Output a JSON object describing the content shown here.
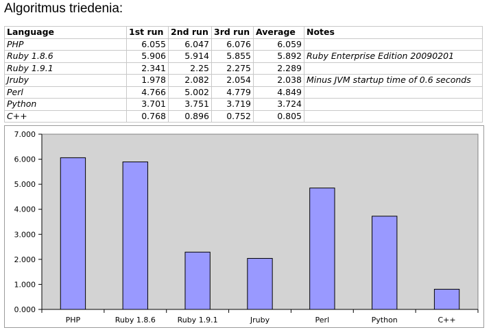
{
  "title": "Algoritmus triedenia:",
  "table": {
    "headers": [
      "Language",
      "1st run",
      "2nd run",
      "3rd run",
      "Average",
      "Notes"
    ],
    "rows": [
      [
        "PHP",
        "6.055",
        "6.047",
        "6.076",
        "6.059",
        ""
      ],
      [
        "Ruby 1.8.6",
        "5.906",
        "5.914",
        "5.855",
        "5.892",
        "Ruby Enterprise Edition 20090201"
      ],
      [
        "Ruby 1.9.1",
        "2.341",
        "2.25",
        "2.275",
        "2.289",
        ""
      ],
      [
        "Jruby",
        "1.978",
        "2.082",
        "2.054",
        "2.038",
        "Minus JVM startup time of 0.6 seconds"
      ],
      [
        "Perl",
        "4.766",
        "5.002",
        "4.779",
        "4.849",
        ""
      ],
      [
        "Python",
        "3.701",
        "3.751",
        "3.719",
        "3.724",
        ""
      ],
      [
        "C++",
        "0.768",
        "0.896",
        "0.752",
        "0.805",
        ""
      ]
    ]
  },
  "chart_data": {
    "type": "bar",
    "categories": [
      "PHP",
      "Ruby 1.8.6",
      "Ruby 1.9.1",
      "Jruby",
      "Perl",
      "Python",
      "C++"
    ],
    "values": [
      6.059,
      5.892,
      2.289,
      2.038,
      4.849,
      3.724,
      0.805
    ],
    "ylim": [
      0,
      7
    ],
    "yticks": [
      "0.000",
      "1.000",
      "2.000",
      "3.000",
      "4.000",
      "5.000",
      "6.000",
      "7.000"
    ],
    "grid": false,
    "legend": "none",
    "colors": {
      "bar": "#9999ff",
      "bar_border": "#000000",
      "plot_bg": "#d3d3d3"
    }
  }
}
